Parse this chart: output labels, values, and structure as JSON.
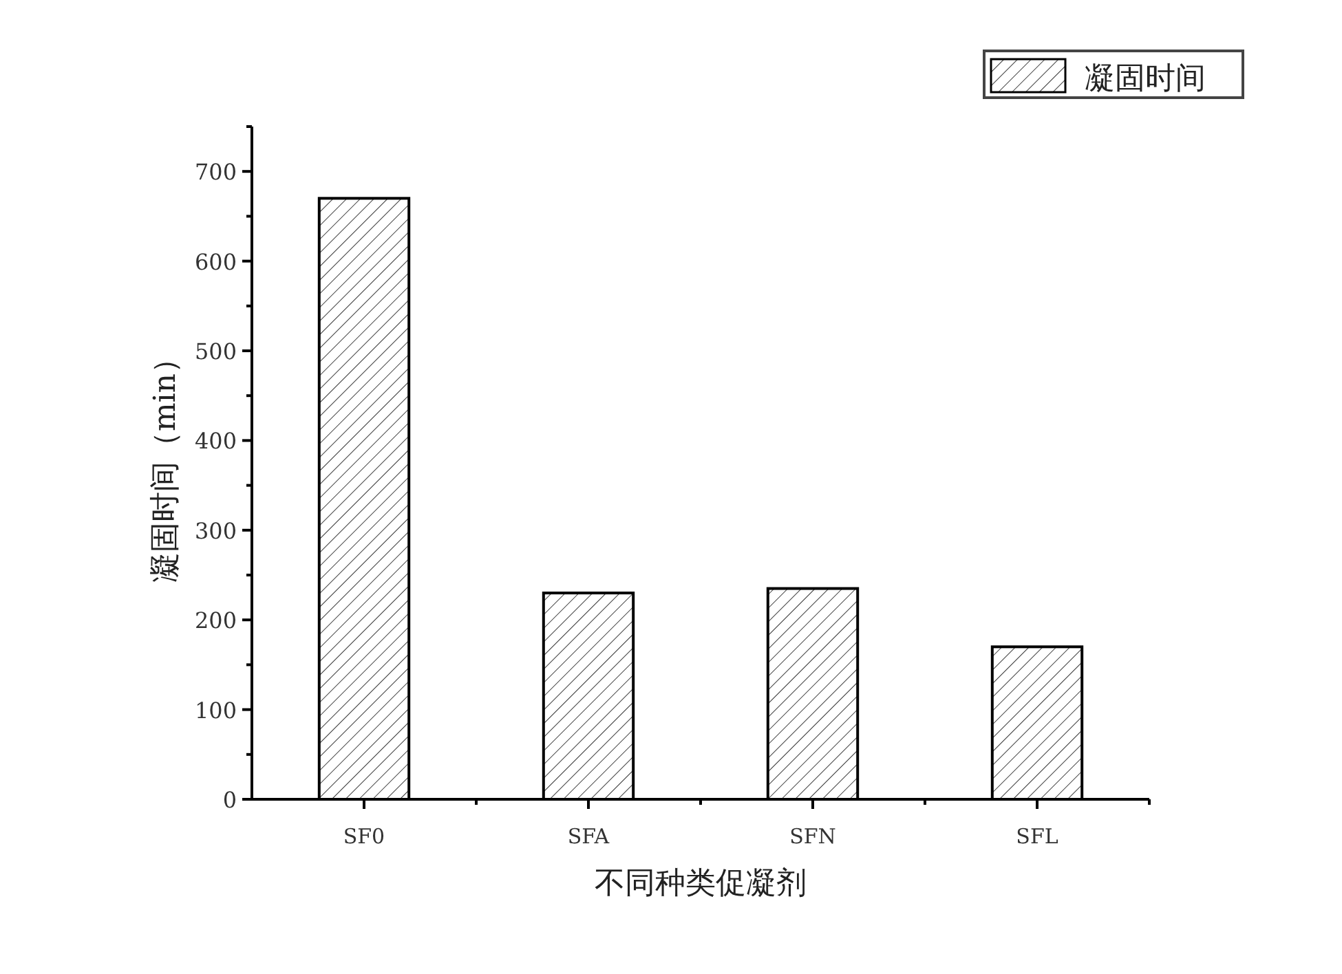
{
  "chart_data": {
    "type": "bar",
    "xlabel": "不同种类促凝剂",
    "ylabel": "凝固时间（min）",
    "categories": [
      "SF0",
      "SFA",
      "SFN",
      "SFL"
    ],
    "series": [
      {
        "name": "凝固时间",
        "color": "#000000",
        "values": [
          670,
          230,
          235,
          170
        ]
      }
    ],
    "ylim": [
      0,
      750
    ],
    "yticks": [
      0,
      {
        "value": 50,
        "label": null
      },
      100,
      {
        "value": 150,
        "label": null
      },
      200,
      {
        "value": 250,
        "label": null
      },
      300,
      {
        "value": 350,
        "label": null
      },
      400,
      {
        "value": 450,
        "label": null
      },
      500,
      {
        "value": 550,
        "label": null
      },
      600,
      {
        "value": 650,
        "label": null
      },
      700,
      {
        "value": 750,
        "label": null
      }
    ],
    "legend": "top right",
    "grid": false
  }
}
